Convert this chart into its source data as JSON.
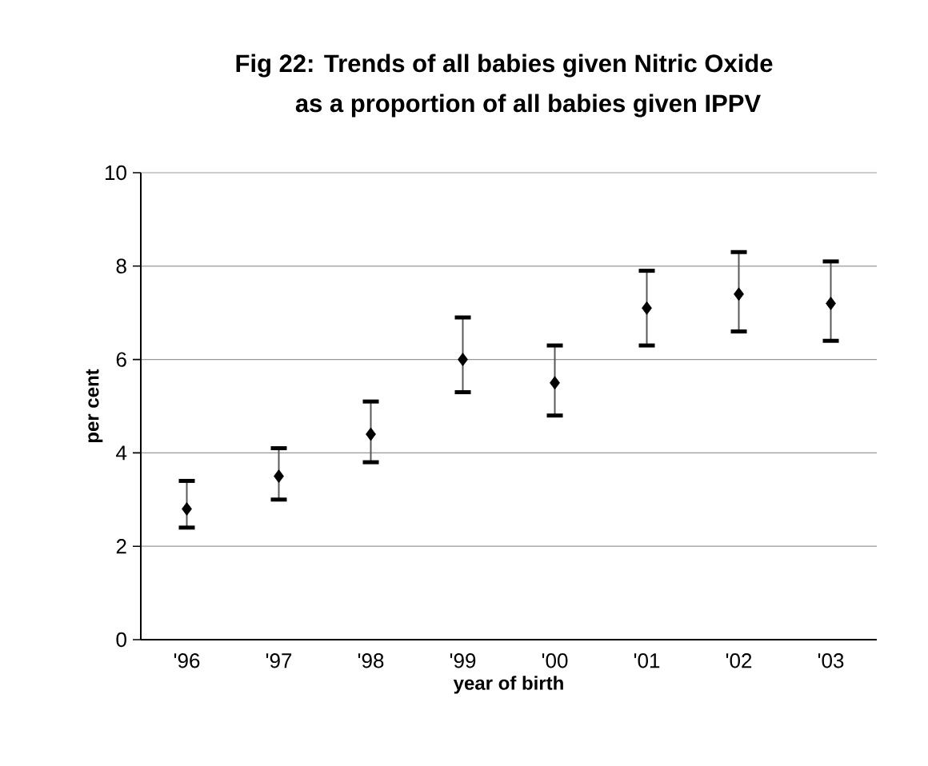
{
  "chart_data": {
    "type": "scatter",
    "title": "Fig 22:    Trends of all babies given Nitric Oxide",
    "subtitle": "as a    proportion of all babies given IPPV",
    "xlabel": "year of birth",
    "ylabel": "per cent",
    "categories": [
      "'96",
      "'97",
      "'98",
      "'99",
      "'00",
      "'01",
      "'02",
      "'03"
    ],
    "values": [
      2.8,
      3.5,
      4.4,
      6.0,
      5.5,
      7.1,
      7.4,
      7.2
    ],
    "errors": [
      [
        2.4,
        3.4
      ],
      [
        3.0,
        4.1
      ],
      [
        3.8,
        5.1
      ],
      [
        5.3,
        6.9
      ],
      [
        4.8,
        6.3
      ],
      [
        6.3,
        7.9
      ],
      [
        6.6,
        8.3
      ],
      [
        6.4,
        8.1
      ]
    ],
    "color": "#000000",
    "marker": "diamond",
    "ylim": [
      0,
      10
    ],
    "yticks": [
      0,
      2,
      4,
      6,
      8,
      10
    ],
    "grid": "y"
  }
}
